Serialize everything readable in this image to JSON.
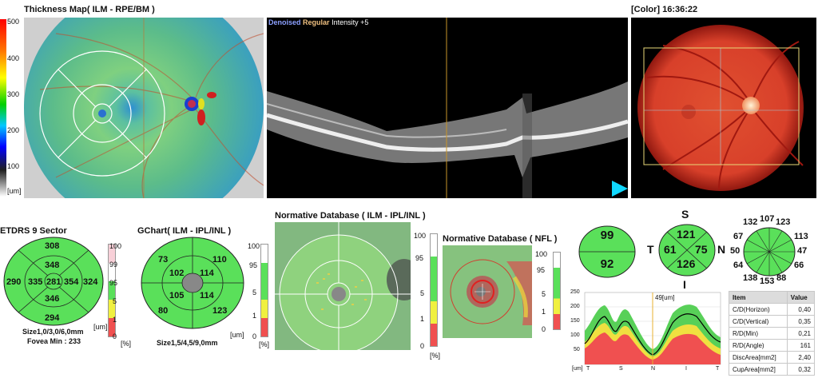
{
  "thickness_map": {
    "title": "Thickness Map( ILM - RPE/BM )",
    "scale_ticks": [
      "500",
      "400",
      "300",
      "200",
      "100"
    ],
    "unit": "[um]"
  },
  "bscan": {
    "label_denoised": "Denoised",
    "label_regular": "Regular",
    "label_intensity": "Intensity +5"
  },
  "fundus": {
    "title": "[Color] 16:36:22"
  },
  "etdrs": {
    "title": "ETDRS 9 Sector",
    "center": "281",
    "inner": {
      "s": "348",
      "i": "346",
      "t": "335",
      "n": "354"
    },
    "outer": {
      "s": "308",
      "i": "294",
      "t": "290",
      "n": "324"
    },
    "unit": "[um]",
    "size": "Size1,0/3,0/6,0mm",
    "fovea_min": "Fovea Min : 233"
  },
  "gchart": {
    "title": "GChart( ILM - IPL/INL )",
    "inner": {
      "tl": "102",
      "tr": "114",
      "bl": "105",
      "br": "114"
    },
    "outer": {
      "tl": "73",
      "tr": "110",
      "bl": "80",
      "br": "123"
    },
    "unit": "[um]",
    "size": "Size1,5/4,5/9,0mm"
  },
  "percent_scale": {
    "ticks": [
      "100",
      "99",
      "95",
      "5",
      "1",
      "0"
    ],
    "unit": "[%]"
  },
  "normative_gcl": {
    "title": "Normative Database ( ILM - IPL/INL )"
  },
  "normative_nfl": {
    "title": "Normative Database ( NFL )"
  },
  "cd_circle": {
    "top": "99",
    "bottom": "92"
  },
  "quadrant": {
    "s_label": "S",
    "i_label": "I",
    "t_label": "T",
    "n_label": "N",
    "s": "121",
    "i": "126",
    "t": "61",
    "n": "75"
  },
  "clock": {
    "values": [
      "107",
      "123",
      "113",
      "47",
      "66",
      "88",
      "153",
      "138",
      "64",
      "50",
      "67",
      "132"
    ]
  },
  "tsnit": {
    "cursor_label": "49[um]",
    "y_ticks": [
      "250",
      "200",
      "150",
      "100",
      "50"
    ],
    "x_labels": [
      "[um]",
      "T",
      "S",
      "N",
      "I",
      "T"
    ]
  },
  "disc_table": {
    "head_item": "Item",
    "head_value": "Value",
    "rows": [
      {
        "item": "C/D(Horizon)",
        "value": "0,40"
      },
      {
        "item": "C/D(Vertical)",
        "value": "0,35"
      },
      {
        "item": "R/D(Min)",
        "value": "0,21"
      },
      {
        "item": "R/D(Angle)",
        "value": "161"
      },
      {
        "item": "DiscArea[mm2]",
        "value": "2,40"
      },
      {
        "item": "CupArea[mm2]",
        "value": "0,32"
      }
    ]
  }
}
